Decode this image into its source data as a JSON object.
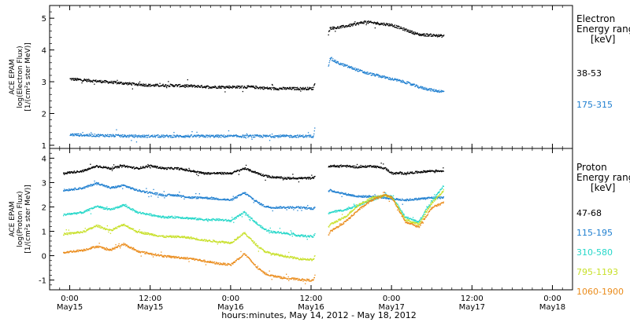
{
  "chart_data": [
    {
      "type": "scatter",
      "panel": "electron",
      "ylabel_lines": [
        "ACE EPAM",
        "log(Electron Flux)",
        "[1/(cm²s ster MeV)]"
      ],
      "ylim": [
        0.9,
        5.4
      ],
      "yticks": [
        1,
        2,
        3,
        4,
        5
      ],
      "xlim_hours": [
        0,
        96
      ],
      "legend_title_lines": [
        "Electron",
        "Energy ranges"
      ],
      "legend_unit": "[keV]",
      "gap": {
        "start": 73.0,
        "end": 77.0
      },
      "series": [
        {
          "name": "38-53",
          "color": "#000000",
          "x": [
            0,
            6,
            12,
            18,
            24,
            30,
            36,
            42,
            48,
            54,
            60,
            66,
            72.5,
            77.5,
            80,
            84,
            88,
            92,
            96,
            100,
            104,
            108,
            111.5
          ],
          "y": [
            3.1,
            3.05,
            3.0,
            2.95,
            2.9,
            2.9,
            2.88,
            2.85,
            2.85,
            2.85,
            2.8,
            2.8,
            2.8,
            4.7,
            4.72,
            4.8,
            4.9,
            4.85,
            4.8,
            4.65,
            4.5,
            4.48,
            4.45
          ]
        },
        {
          "name": "175-315",
          "color": "#1f7fd0",
          "x": [
            0,
            6,
            12,
            18,
            24,
            30,
            36,
            42,
            48,
            54,
            60,
            66,
            72.5,
            77.5,
            80,
            84,
            88,
            92,
            96,
            100,
            104,
            108,
            111.5
          ],
          "y": [
            1.35,
            1.33,
            1.32,
            1.3,
            1.3,
            1.3,
            1.3,
            1.3,
            1.3,
            1.3,
            1.3,
            1.3,
            1.3,
            3.75,
            3.6,
            3.45,
            3.3,
            3.2,
            3.1,
            3.0,
            2.85,
            2.75,
            2.7
          ]
        }
      ]
    },
    {
      "type": "scatter",
      "panel": "proton",
      "ylabel_lines": [
        "ACE EPAM",
        "log(Proton Flux)",
        "[1/(cm²s ster MeV)]"
      ],
      "ylim": [
        -1.4,
        4.4
      ],
      "yticks": [
        -1,
        0,
        1,
        2,
        3,
        4
      ],
      "xlim_hours": [
        0,
        96
      ],
      "legend_title_lines": [
        "Proton",
        "Energy ranges"
      ],
      "legend_unit": "[keV]",
      "gap": {
        "start": 73.0,
        "end": 77.0
      },
      "series": [
        {
          "name": "47-68",
          "color": "#000000",
          "x": [
            -2,
            4,
            8,
            12,
            16,
            20,
            24,
            28,
            32,
            36,
            40,
            44,
            48,
            52,
            56,
            58,
            60,
            64,
            68,
            72.5,
            77.5,
            82,
            86,
            90,
            94,
            96,
            100,
            104,
            108,
            111.5
          ],
          "y": [
            3.4,
            3.5,
            3.7,
            3.6,
            3.7,
            3.6,
            3.7,
            3.6,
            3.6,
            3.5,
            3.4,
            3.4,
            3.4,
            3.6,
            3.4,
            3.3,
            3.25,
            3.2,
            3.2,
            3.2,
            3.7,
            3.7,
            3.65,
            3.7,
            3.6,
            3.4,
            3.4,
            3.45,
            3.5,
            3.5
          ]
        },
        {
          "name": "115-195",
          "color": "#1f7fd0",
          "x": [
            -2,
            4,
            8,
            12,
            16,
            20,
            24,
            28,
            32,
            36,
            40,
            44,
            48,
            52,
            56,
            58,
            60,
            64,
            68,
            72.5,
            77.5,
            82,
            86,
            90,
            94,
            96,
            100,
            104,
            108,
            111.5
          ],
          "y": [
            2.7,
            2.8,
            3.0,
            2.8,
            2.9,
            2.7,
            2.6,
            2.5,
            2.5,
            2.4,
            2.4,
            2.35,
            2.3,
            2.6,
            2.2,
            2.05,
            2.0,
            2.0,
            2.0,
            1.95,
            2.7,
            2.55,
            2.45,
            2.45,
            2.4,
            2.35,
            2.3,
            2.35,
            2.4,
            2.4
          ]
        },
        {
          "name": "310-580",
          "color": "#25d7c9",
          "x": [
            -2,
            4,
            8,
            12,
            16,
            20,
            24,
            28,
            32,
            36,
            40,
            44,
            48,
            52,
            56,
            58,
            60,
            64,
            68,
            72.5,
            77.5,
            82,
            86,
            90,
            94,
            96,
            100,
            104,
            108,
            111.5
          ],
          "y": [
            1.7,
            1.8,
            2.05,
            1.9,
            2.1,
            1.8,
            1.7,
            1.6,
            1.6,
            1.55,
            1.5,
            1.5,
            1.45,
            1.8,
            1.3,
            1.1,
            1.0,
            0.95,
            0.85,
            0.8,
            1.8,
            1.9,
            2.1,
            2.3,
            2.5,
            2.45,
            1.6,
            1.4,
            2.3,
            2.9
          ]
        },
        {
          "name": "795-1193",
          "color": "#c8e02a",
          "x": [
            -2,
            4,
            8,
            12,
            16,
            20,
            24,
            28,
            32,
            36,
            40,
            44,
            48,
            52,
            56,
            58,
            60,
            64,
            68,
            72.5,
            77.5,
            82,
            86,
            90,
            94,
            96,
            100,
            104,
            108,
            111.5
          ],
          "y": [
            0.9,
            1.0,
            1.25,
            1.05,
            1.3,
            1.0,
            0.9,
            0.8,
            0.8,
            0.75,
            0.65,
            0.6,
            0.55,
            0.95,
            0.4,
            0.2,
            0.1,
            0.0,
            -0.1,
            -0.15,
            1.3,
            1.6,
            2.1,
            2.4,
            2.5,
            2.4,
            1.5,
            1.3,
            2.2,
            2.7
          ]
        },
        {
          "name": "1060-1900",
          "color": "#ea8b1a",
          "x": [
            -2,
            4,
            8,
            12,
            16,
            20,
            24,
            28,
            32,
            36,
            40,
            44,
            48,
            52,
            56,
            58,
            60,
            64,
            68,
            72.5,
            77.5,
            82,
            86,
            90,
            94,
            96,
            100,
            104,
            108,
            111.5
          ],
          "y": [
            0.15,
            0.25,
            0.4,
            0.25,
            0.5,
            0.2,
            0.1,
            0.0,
            -0.05,
            -0.1,
            -0.2,
            -0.3,
            -0.35,
            0.1,
            -0.5,
            -0.7,
            -0.8,
            -0.9,
            -0.95,
            -1.0,
            1.0,
            1.4,
            1.9,
            2.3,
            2.5,
            2.4,
            1.4,
            1.2,
            2.0,
            2.2
          ]
        }
      ]
    }
  ],
  "x_axis": {
    "ticks": [
      {
        "hours": 0,
        "label": "0:00",
        "date": "May15"
      },
      {
        "hours": 24,
        "label": "12:00",
        "date": "May15"
      },
      {
        "hours": 48,
        "label": "0:00",
        "date": "May16"
      },
      {
        "hours": 72,
        "label": "12:00",
        "date": "May16"
      },
      {
        "hours": 96,
        "label": "0:00",
        "date": "May17"
      },
      {
        "hours": 120,
        "label": "12:00",
        "date": "May17"
      },
      {
        "hours": 144,
        "label": "0:00",
        "date": "May18"
      }
    ],
    "title": "hours:minutes, May 14, 2012 - May 18, 2012"
  }
}
